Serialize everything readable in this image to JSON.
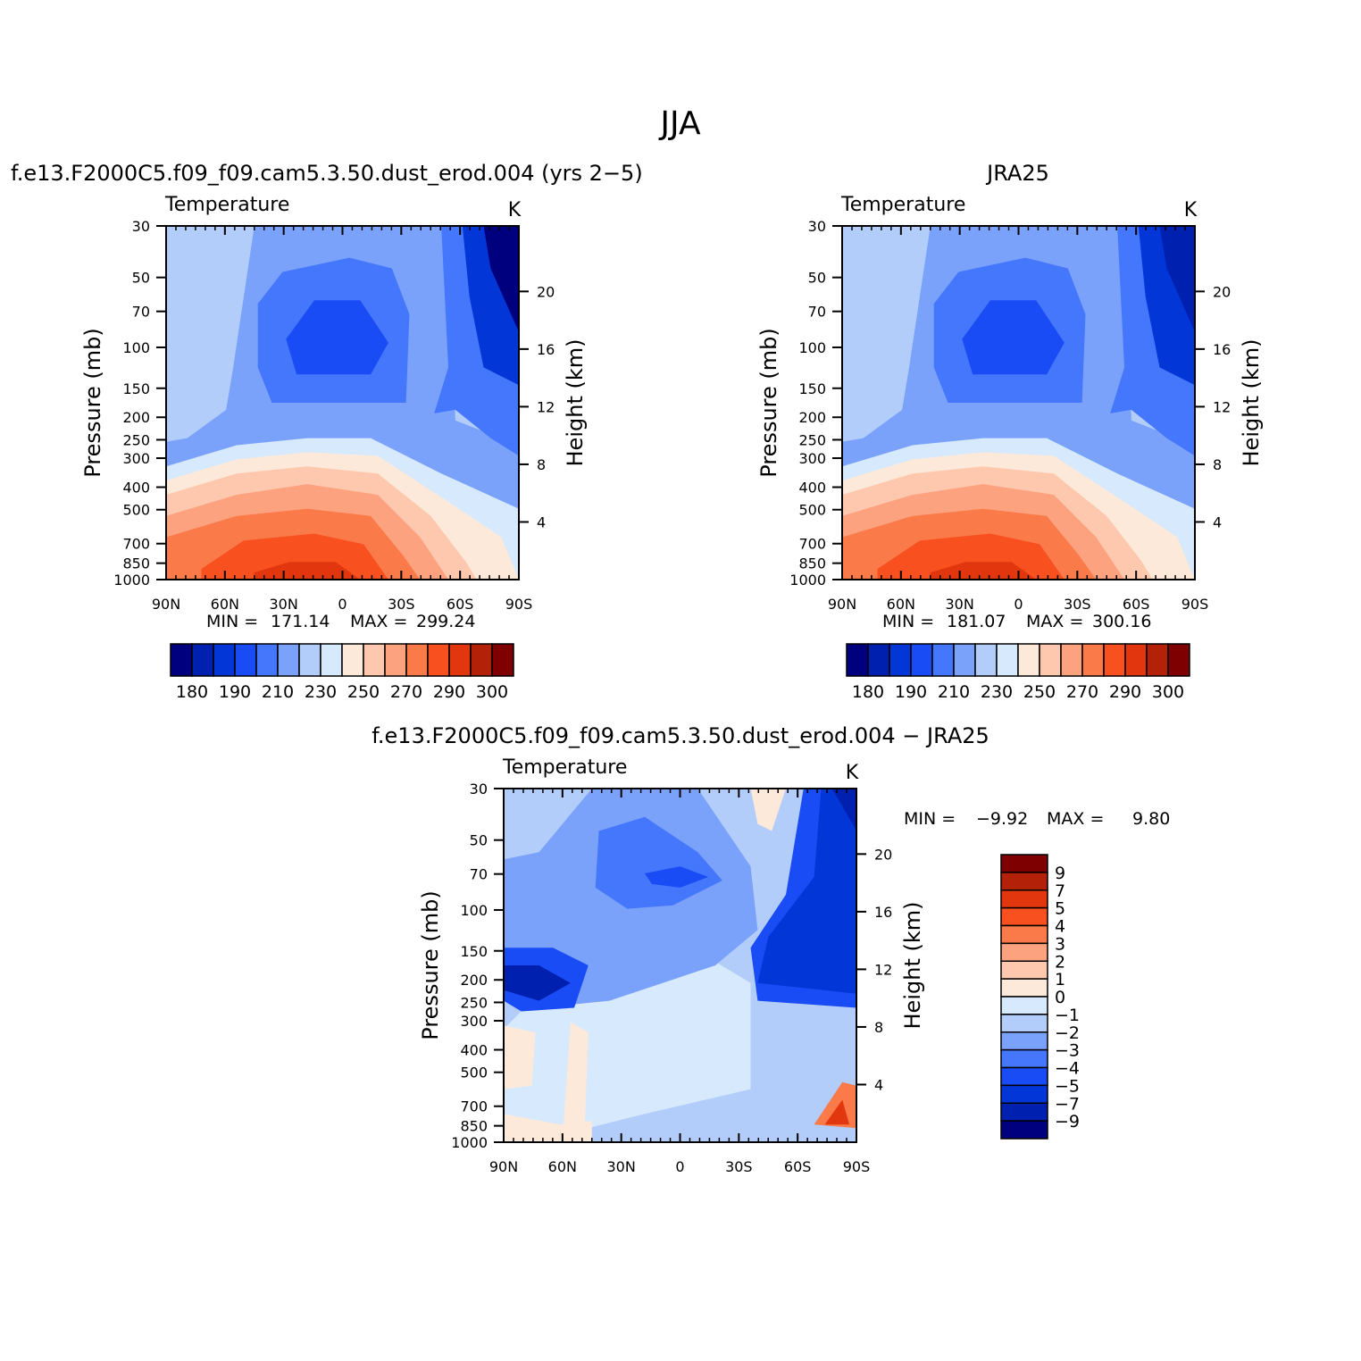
{
  "title": "JJA",
  "colorbar_abs": {
    "colors": [
      "#00007f",
      "#0021b0",
      "#0236d7",
      "#1a4cf5",
      "#4477fc",
      "#7aa2fb",
      "#b3cdfb",
      "#d7e9fc",
      "#fde9d9",
      "#fdc8ae",
      "#fca27f",
      "#fb7a49",
      "#f9501f",
      "#e2360e",
      "#b42109",
      "#7f0000"
    ],
    "labels": [
      "180",
      "190",
      "210",
      "230",
      "250",
      "270",
      "290",
      "300"
    ]
  },
  "colorbar_diff": {
    "colors": [
      "#00007f",
      "#0021b0",
      "#0236d7",
      "#1a4cf5",
      "#4477fc",
      "#7aa2fb",
      "#b3cdfb",
      "#d7e9fc",
      "#fde9d9",
      "#fdc8ae",
      "#fca27f",
      "#fb7a49",
      "#f9501f",
      "#e2360e",
      "#b42109",
      "#7f0000"
    ],
    "labels": [
      "9",
      "7",
      "5",
      "4",
      "3",
      "2",
      "1",
      "0",
      "−1",
      "−2",
      "−3",
      "−4",
      "−5",
      "−7",
      "−9"
    ]
  },
  "chart_data": [
    {
      "type": "heatmap",
      "title": "f.e13.F2000C5.f09_f09.cam5.3.50.dust_erod.004 (yrs 2−5)",
      "variable": "Temperature",
      "units": "K",
      "xlabel": "",
      "ylabel": "Pressure (mb)",
      "ylabel_right": "Height (km)",
      "x_ticks": [
        "90N",
        "60N",
        "30N",
        "0",
        "30S",
        "60S",
        "90S"
      ],
      "y_ticks": [
        "30",
        "50",
        "70",
        "100",
        "150",
        "200",
        "250",
        "300",
        "400",
        "500",
        "700",
        "850",
        "1000"
      ],
      "y_right_ticks": [
        "20",
        "16",
        "12",
        "8",
        "4"
      ],
      "ylim": [
        1000,
        30
      ],
      "log_scale": true,
      "min_label": "MIN =",
      "min_value": "171.14",
      "max_label": "MAX =",
      "max_value": "299.24"
    },
    {
      "type": "heatmap",
      "title": "JRA25",
      "variable": "Temperature",
      "units": "K",
      "xlabel": "",
      "ylabel": "Pressure (mb)",
      "ylabel_right": "Height (km)",
      "x_ticks": [
        "90N",
        "60N",
        "30N",
        "0",
        "30S",
        "60S",
        "90S"
      ],
      "y_ticks": [
        "30",
        "50",
        "70",
        "100",
        "150",
        "200",
        "250",
        "300",
        "400",
        "500",
        "700",
        "850",
        "1000"
      ],
      "y_right_ticks": [
        "20",
        "16",
        "12",
        "8",
        "4"
      ],
      "ylim": [
        1000,
        30
      ],
      "log_scale": true,
      "min_label": "MIN =",
      "min_value": "181.07",
      "max_label": "MAX =",
      "max_value": "300.16"
    },
    {
      "type": "heatmap",
      "title": "f.e13.F2000C5.f09_f09.cam5.3.50.dust_erod.004 − JRA25",
      "variable": "Temperature",
      "units": "K",
      "xlabel": "",
      "ylabel": "Pressure (mb)",
      "ylabel_right": "Height (km)",
      "x_ticks": [
        "90N",
        "60N",
        "30N",
        "0",
        "30S",
        "60S",
        "90S"
      ],
      "y_ticks": [
        "30",
        "50",
        "70",
        "100",
        "150",
        "200",
        "250",
        "300",
        "400",
        "500",
        "700",
        "850",
        "1000"
      ],
      "y_right_ticks": [
        "20",
        "16",
        "12",
        "8",
        "4"
      ],
      "ylim": [
        1000,
        30
      ],
      "log_scale": true,
      "min_label": "MIN =",
      "min_value": "−9.92",
      "max_label": "MAX =",
      "max_value": "9.80"
    }
  ]
}
